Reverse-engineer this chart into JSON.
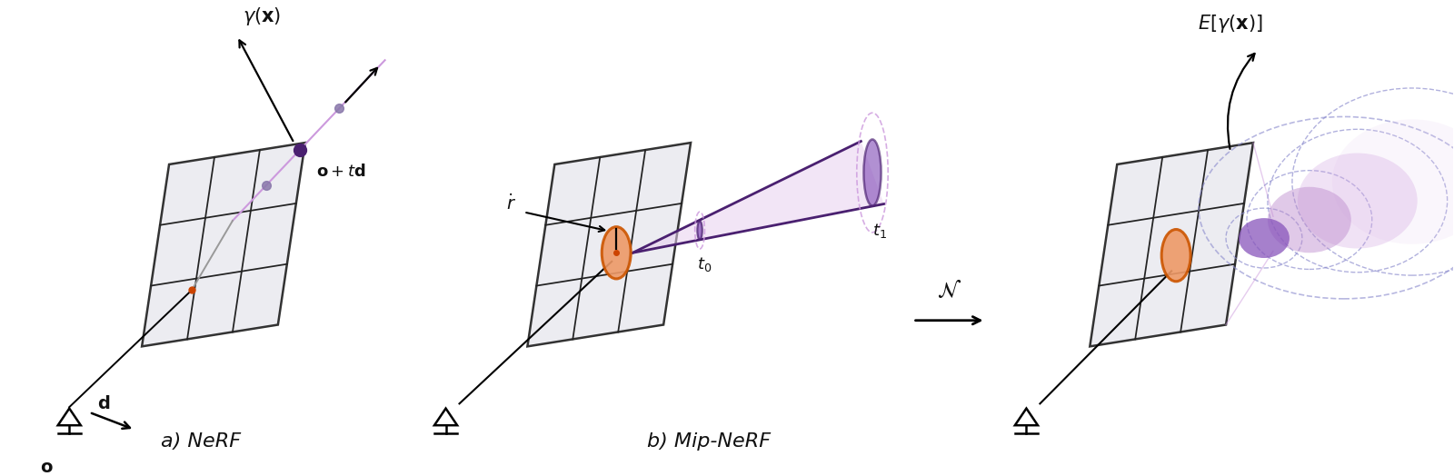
{
  "fig_width": 16.0,
  "fig_height": 5.24,
  "dpi": 100,
  "bg_color": "#ffffff",
  "purple_dark": "#4a2070",
  "purple_mid": "#8855bb",
  "purple_light": "#cc99dd",
  "purple_fill": "#bb88cc",
  "purple_very_light": "#e8d0f0",
  "orange_edge": "#cc5500",
  "orange_fill": "#ee9966",
  "orange_dot": "#cc4400",
  "purple_dot": "#4a2070",
  "purple_sample": "#8877aa",
  "dashed_color": "#8888cc",
  "grid_line": "#222222",
  "panel_fill": "#ebebf0",
  "text_black": "#111111",
  "label_a": "a) NeRF",
  "label_b": "b) Mip-NeRF"
}
